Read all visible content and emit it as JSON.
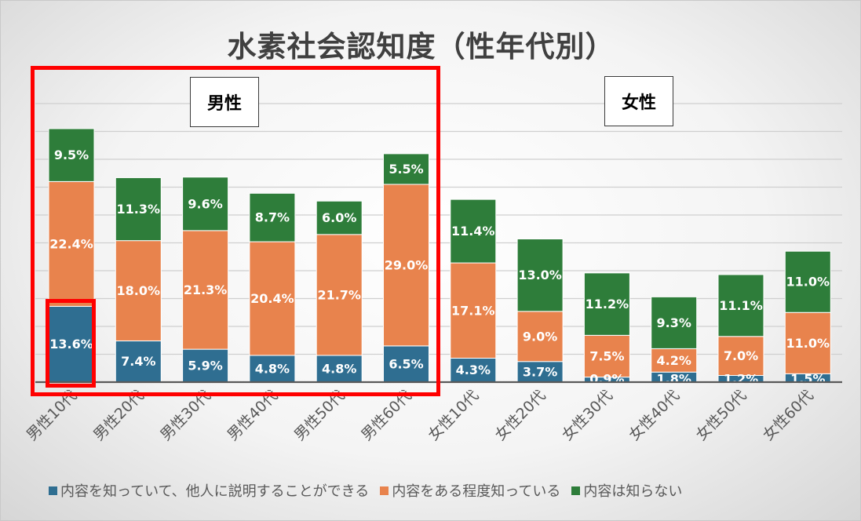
{
  "chart_data": {
    "type": "bar",
    "stacked": true,
    "title": "水素社会認知度（性年代別）",
    "categories": [
      "男性10代",
      "男性20代",
      "男性30代",
      "男性40代",
      "男性50代",
      "男性60代",
      "女性10代",
      "女性20代",
      "女性30代",
      "女性40代",
      "女性50代",
      "女性60代"
    ],
    "series": [
      {
        "name": "内容を知っていて、他人に説明することができる",
        "color": "#2f6e91",
        "values": [
          13.6,
          7.4,
          5.9,
          4.8,
          4.8,
          6.5,
          4.3,
          3.7,
          0.9,
          1.8,
          1.2,
          1.5
        ],
        "labels": [
          "13.6%",
          "7.4%",
          "5.9%",
          "4.8%",
          "4.8%",
          "6.5%",
          "4.3%",
          "3.7%",
          "0.9%",
          "1.8%",
          "1.2%",
          "1.5%"
        ]
      },
      {
        "name": "内容をある程度知っている",
        "color": "#e8834d",
        "values": [
          22.4,
          18.0,
          21.3,
          20.4,
          21.7,
          29.0,
          17.1,
          9.0,
          7.5,
          4.2,
          7.0,
          11.0
        ],
        "labels": [
          "22.4%",
          "18.0%",
          "21.3%",
          "20.4%",
          "21.7%",
          "29.0%",
          "17.1%",
          "9.0%",
          "7.5%",
          "4.2%",
          "7.0%",
          "11.0%"
        ]
      },
      {
        "name": "内容は知らない",
        "color": "#2e7d3a",
        "values": [
          9.5,
          11.3,
          9.6,
          8.7,
          6.0,
          5.5,
          11.4,
          13.0,
          11.2,
          9.3,
          11.1,
          11.0
        ],
        "labels": [
          "9.5%",
          "11.3%",
          "9.6%",
          "8.7%",
          "6.0%",
          "5.5%",
          "11.4%",
          "13.0%",
          "11.2%",
          "9.3%",
          "11.1%",
          "11.0%"
        ]
      }
    ],
    "ylim": [
      0,
      50
    ],
    "grid": true,
    "legend_position": "bottom"
  },
  "annotations": {
    "male_box_label": "男性",
    "female_box_label": "女性",
    "highlight_color": "#ff0000"
  }
}
